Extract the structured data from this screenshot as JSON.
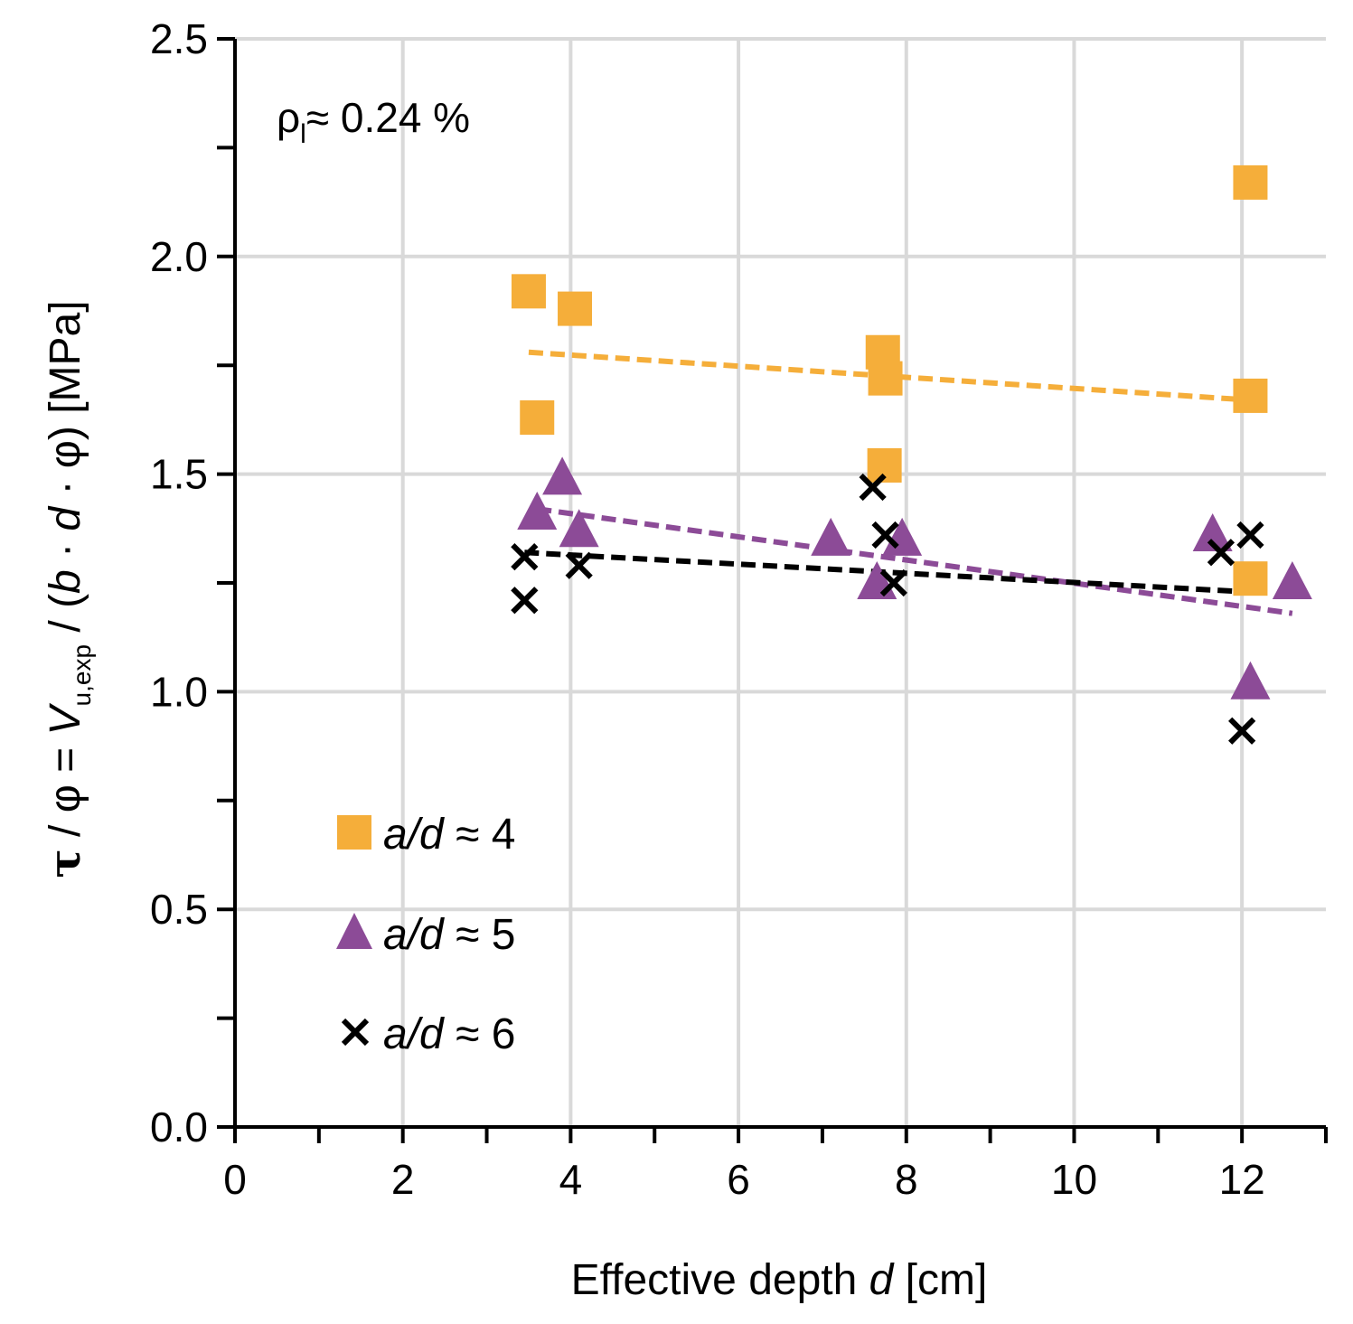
{
  "chart_data": {
    "type": "scatter",
    "title": "",
    "xlabel": "Effective depth d [cm]",
    "xlabel_parts": {
      "prefix": "Effective depth ",
      "var": "d",
      "suffix": " [cm]"
    },
    "ylabel": "τ / φ = V_u,exp / (b · d · φ) [MPa]",
    "ylabel_parts": {
      "tau": "τ",
      "p1": " / φ = ",
      "V": "V",
      "sub": "u,exp",
      "p2": " / (",
      "b": "b",
      "dot1": " · ",
      "d": "d",
      "p3": " ·  φ) [MPa]"
    },
    "xlim": [
      0,
      13
    ],
    "ylim": [
      0,
      2.5
    ],
    "x_ticks": [
      0,
      2,
      4,
      6,
      8,
      10,
      12
    ],
    "y_ticks": [
      0.0,
      0.5,
      1.0,
      1.5,
      2.0,
      2.5
    ],
    "x_tick_labels": [
      "0",
      "2",
      "4",
      "6",
      "8",
      "10",
      "12"
    ],
    "y_tick_labels": [
      "0.0",
      "0.5",
      "1.0",
      "1.5",
      "2.0",
      "2.5"
    ],
    "grid": true,
    "annotation": {
      "rho": "ρ",
      "sub": "l",
      "rest": "≈ 0.24 %"
    },
    "series": [
      {
        "name": "a/d ≈ 4",
        "label_var": "a/d",
        "label_rest": " ≈ 4",
        "marker": "square",
        "color": "#F5AE3A",
        "x": [
          3.5,
          4.05,
          3.6,
          7.72,
          7.75,
          7.74,
          12.1,
          12.1,
          12.1
        ],
        "y": [
          1.92,
          1.88,
          1.63,
          1.78,
          1.72,
          1.52,
          2.17,
          1.68,
          1.26
        ],
        "trend": {
          "x": [
            3.5,
            12.1
          ],
          "y": [
            1.78,
            1.67
          ]
        }
      },
      {
        "name": "a/d ≈ 5",
        "label_var": "a/d",
        "label_rest": " ≈ 5",
        "marker": "triangle",
        "color": "#8C4B97",
        "x": [
          3.6,
          3.9,
          4.1,
          7.1,
          7.65,
          7.95,
          11.65,
          12.1,
          12.6
        ],
        "y": [
          1.41,
          1.49,
          1.37,
          1.35,
          1.25,
          1.35,
          1.36,
          1.02,
          1.25
        ],
        "trend": {
          "x": [
            3.6,
            12.6
          ],
          "y": [
            1.42,
            1.18
          ]
        }
      },
      {
        "name": "a/d ≈ 6",
        "label_var": "a/d",
        "label_rest": " ≈ 6",
        "marker": "cross",
        "color": "#000000",
        "x": [
          3.45,
          3.45,
          4.1,
          7.6,
          7.75,
          7.85,
          11.75,
          12.1,
          12.0
        ],
        "y": [
          1.31,
          1.21,
          1.29,
          1.47,
          1.36,
          1.25,
          1.32,
          1.36,
          0.91
        ],
        "trend": {
          "x": [
            3.45,
            12.0
          ],
          "y": [
            1.32,
            1.23
          ]
        }
      }
    ]
  }
}
